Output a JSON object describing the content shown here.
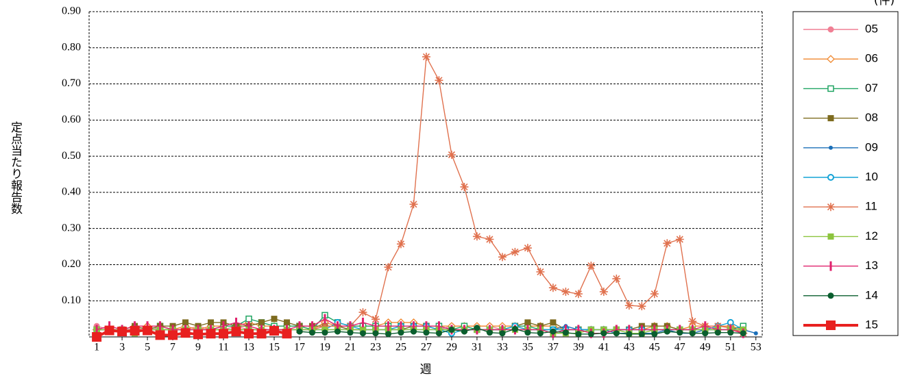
{
  "chart_data": {
    "type": "line",
    "y_label": "定点当たり報告数",
    "x_label": "週",
    "unit_label": "(件)",
    "x": [
      1,
      2,
      3,
      4,
      5,
      6,
      7,
      8,
      9,
      10,
      11,
      12,
      13,
      14,
      15,
      16,
      17,
      18,
      19,
      20,
      21,
      22,
      23,
      24,
      25,
      26,
      27,
      28,
      29,
      30,
      31,
      32,
      33,
      34,
      35,
      36,
      37,
      38,
      39,
      40,
      41,
      42,
      43,
      44,
      45,
      46,
      47,
      48,
      49,
      50,
      51,
      52,
      53
    ],
    "xlim": [
      0.4,
      53.5
    ],
    "xticks": [
      1,
      3,
      5,
      7,
      9,
      11,
      13,
      15,
      17,
      19,
      21,
      23,
      25,
      27,
      29,
      31,
      33,
      35,
      37,
      39,
      41,
      43,
      45,
      47,
      49,
      51,
      53
    ],
    "ylim": [
      0,
      0.9
    ],
    "yticks": [
      {
        "value": 0.1,
        "label": "0.10"
      },
      {
        "value": 0.2,
        "label": "0.20"
      },
      {
        "value": 0.3,
        "label": "0.30"
      },
      {
        "value": 0.4,
        "label": "0.40"
      },
      {
        "value": 0.5,
        "label": "0.50"
      },
      {
        "value": 0.6,
        "label": "0.60"
      },
      {
        "value": 0.7,
        "label": "0.70"
      },
      {
        "value": 0.8,
        "label": "0.80"
      },
      {
        "value": 0.9,
        "label": "0.90"
      }
    ],
    "grid": true,
    "series": [
      {
        "name": "05",
        "color": "#f07f94",
        "marker": "circle",
        "values": [
          0.03,
          0.02,
          0.02,
          0.02,
          0.03,
          0.02,
          0.02,
          0.02,
          0.03,
          0.02,
          0.02,
          0.03,
          0.02,
          0.02,
          0.02,
          0.02,
          0.02,
          0.02,
          0.03,
          0.03,
          0.02,
          0.02,
          0.02,
          0.02,
          0.03,
          0.03,
          0.03,
          0.02,
          0.03,
          0.03,
          0.03,
          0.03,
          0.02,
          0.03,
          0.02,
          0.02,
          0.02,
          0.02,
          0.02,
          0.02,
          0.02,
          0.02,
          0.02,
          0.02,
          0.02,
          0.02,
          0.02,
          0.02,
          0.02,
          0.03,
          0.03,
          0.01,
          null
        ]
      },
      {
        "name": "06",
        "color": "#f0872e",
        "marker": "diamond-open",
        "values": [
          0.02,
          0.02,
          0.02,
          0.03,
          0.03,
          0.03,
          0.02,
          0.03,
          0.02,
          0.03,
          0.03,
          0.03,
          0.04,
          0.03,
          0.03,
          0.03,
          0.03,
          0.02,
          0.04,
          0.03,
          0.03,
          0.03,
          0.03,
          0.04,
          0.04,
          0.04,
          0.03,
          0.03,
          0.03,
          0.03,
          0.03,
          0.03,
          0.03,
          0.03,
          0.03,
          0.03,
          0.03,
          0.02,
          0.02,
          0.02,
          0.02,
          0.02,
          0.02,
          0.02,
          0.03,
          0.03,
          0.02,
          0.03,
          0.03,
          0.03,
          0.03,
          0.02,
          null
        ]
      },
      {
        "name": "07",
        "color": "#1fa462",
        "marker": "square-open",
        "values": [
          0.02,
          0.02,
          0.02,
          0.02,
          0.02,
          0.03,
          0.02,
          0.02,
          0.02,
          0.02,
          0.03,
          0.03,
          0.05,
          0.04,
          0.03,
          0.03,
          0.03,
          0.02,
          0.06,
          0.04,
          0.03,
          0.03,
          0.03,
          0.03,
          0.03,
          0.03,
          0.03,
          0.03,
          0.02,
          0.03,
          0.02,
          0.02,
          0.02,
          0.03,
          0.03,
          0.02,
          0.02,
          0.02,
          0.02,
          0.02,
          0.02,
          0.02,
          0.02,
          0.02,
          0.02,
          0.02,
          0.02,
          0.02,
          0.02,
          0.02,
          0.02,
          0.03,
          null
        ]
      },
      {
        "name": "08",
        "color": "#7d6b1e",
        "marker": "square",
        "values": [
          0.02,
          0.02,
          0.02,
          0.03,
          0.02,
          0.03,
          0.03,
          0.04,
          0.03,
          0.04,
          0.04,
          0.03,
          0.03,
          0.04,
          0.05,
          0.04,
          0.03,
          0.03,
          0.03,
          0.03,
          0.02,
          0.02,
          0.02,
          0.02,
          0.02,
          0.03,
          0.03,
          0.02,
          0.02,
          0.02,
          0.02,
          0.02,
          0.02,
          0.03,
          0.04,
          0.03,
          0.04,
          0.02,
          0.02,
          0.02,
          0.02,
          0.02,
          0.02,
          0.03,
          0.03,
          0.03,
          0.02,
          0.02,
          0.02,
          0.02,
          0.02,
          0.02,
          null
        ]
      },
      {
        "name": "09",
        "color": "#1b6fb8",
        "marker": "dot",
        "values": [
          0.02,
          0.02,
          0.02,
          0.02,
          0.02,
          0.02,
          0.02,
          0.02,
          0.02,
          0.02,
          0.02,
          0.02,
          0.02,
          0.02,
          0.02,
          0.02,
          0.02,
          0.02,
          0.02,
          0.02,
          0.02,
          0.02,
          0.02,
          0.02,
          0.02,
          0.02,
          0.02,
          0.02,
          0.02,
          0.02,
          0.02,
          0.02,
          0.02,
          0.02,
          0.02,
          0.02,
          0.02,
          0.03,
          0.02,
          0.02,
          0.02,
          0.01,
          0.01,
          0.01,
          0.01,
          0.02,
          0.01,
          0.01,
          0.02,
          0.02,
          0.02,
          0.02,
          0.01
        ]
      },
      {
        "name": "10",
        "color": "#14a3d6",
        "marker": "circle-open",
        "values": [
          0.02,
          0.02,
          0.02,
          0.02,
          0.02,
          0.02,
          0.02,
          0.02,
          0.02,
          0.02,
          0.02,
          0.02,
          0.02,
          0.02,
          0.02,
          0.02,
          0.02,
          0.02,
          0.02,
          0.04,
          0.03,
          0.02,
          0.02,
          0.02,
          0.03,
          0.03,
          0.03,
          0.02,
          0.01,
          0.02,
          0.02,
          0.02,
          0.02,
          0.03,
          0.02,
          0.02,
          0.02,
          0.02,
          0.02,
          0.02,
          0.02,
          0.02,
          0.02,
          0.02,
          0.02,
          0.02,
          0.02,
          0.02,
          0.02,
          0.03,
          0.04,
          0.02,
          null
        ]
      },
      {
        "name": "11",
        "color": "#e0714e",
        "marker": "asterisk",
        "values": [
          0.02,
          0.02,
          0.02,
          0.02,
          0.02,
          0.02,
          0.02,
          0.02,
          0.02,
          0.02,
          0.02,
          0.02,
          0.02,
          0.02,
          0.02,
          0.02,
          0.02,
          0.02,
          0.03,
          0.03,
          0.03,
          0.068,
          0.049,
          0.193,
          0.257,
          0.367,
          0.775,
          0.71,
          0.504,
          0.415,
          0.278,
          0.27,
          0.221,
          0.235,
          0.246,
          0.18,
          0.136,
          0.125,
          0.119,
          0.197,
          0.125,
          0.161,
          0.087,
          0.085,
          0.119,
          0.259,
          0.27,
          0.043,
          0.03,
          0.03,
          0.025,
          0.01,
          null
        ]
      },
      {
        "name": "12",
        "color": "#8cc43e",
        "marker": "square",
        "values": [
          0.02,
          0.02,
          0.02,
          0.01,
          0.02,
          0.02,
          0.02,
          0.02,
          0.02,
          0.02,
          0.02,
          0.02,
          0.02,
          0.02,
          0.02,
          0.02,
          0.02,
          0.02,
          0.02,
          0.02,
          0.02,
          0.02,
          0.02,
          0.02,
          0.02,
          0.02,
          0.02,
          0.02,
          0.02,
          0.02,
          0.02,
          0.02,
          0.02,
          0.02,
          0.02,
          0.02,
          0.01,
          0.01,
          0.01,
          0.02,
          0.02,
          0.02,
          0.01,
          0.01,
          0.02,
          0.02,
          0.02,
          0.02,
          0.02,
          0.02,
          0.02,
          0.02,
          null
        ]
      },
      {
        "name": "13",
        "color": "#e0216c",
        "marker": "bar",
        "values": [
          0.02,
          0.03,
          0.02,
          0.03,
          0.03,
          0.03,
          0.02,
          0.02,
          0.02,
          0.02,
          0.03,
          0.04,
          0.03,
          0.02,
          0.02,
          0.02,
          0.03,
          0.03,
          0.05,
          0.03,
          0.03,
          0.04,
          0.03,
          0.03,
          0.03,
          0.03,
          0.03,
          0.03,
          0.02,
          0.02,
          0.02,
          0.02,
          0.02,
          0.02,
          0.02,
          0.02,
          0.01,
          0.02,
          0.02,
          0.01,
          0.01,
          0.02,
          0.02,
          0.02,
          0.02,
          0.02,
          0.02,
          0.02,
          0.03,
          0.02,
          0.02,
          0.01,
          null
        ]
      },
      {
        "name": "14",
        "color": "#0a5e2e",
        "marker": "circle",
        "values": [
          null,
          null,
          null,
          null,
          null,
          null,
          null,
          null,
          null,
          null,
          null,
          null,
          null,
          null,
          null,
          null,
          0.015,
          0.012,
          0.012,
          0.015,
          0.012,
          0.01,
          0.01,
          0.008,
          0.012,
          0.015,
          0.012,
          0.01,
          0.02,
          0.015,
          0.025,
          0.012,
          0.01,
          0.022,
          0.012,
          0.01,
          0.015,
          0.012,
          0.008,
          0.008,
          0.01,
          0.01,
          0.008,
          0.008,
          0.008,
          0.015,
          0.012,
          0.01,
          0.01,
          0.012,
          0.012,
          0.01,
          null
        ]
      },
      {
        "name": "15",
        "color": "#e8201f",
        "marker": "square-big",
        "values": [
          0.0,
          0.018,
          0.015,
          0.017,
          0.018,
          0.005,
          0.005,
          0.011,
          0.007,
          0.009,
          0.009,
          0.015,
          0.009,
          0.009,
          0.017,
          0.009,
          null,
          null,
          null,
          null,
          null,
          null,
          null,
          null,
          null,
          null,
          null,
          null,
          null,
          null,
          null,
          null,
          null,
          null,
          null,
          null,
          null,
          null,
          null,
          null,
          null,
          null,
          null,
          null,
          null,
          null,
          null,
          null,
          null,
          null,
          null,
          null,
          null
        ]
      }
    ]
  }
}
